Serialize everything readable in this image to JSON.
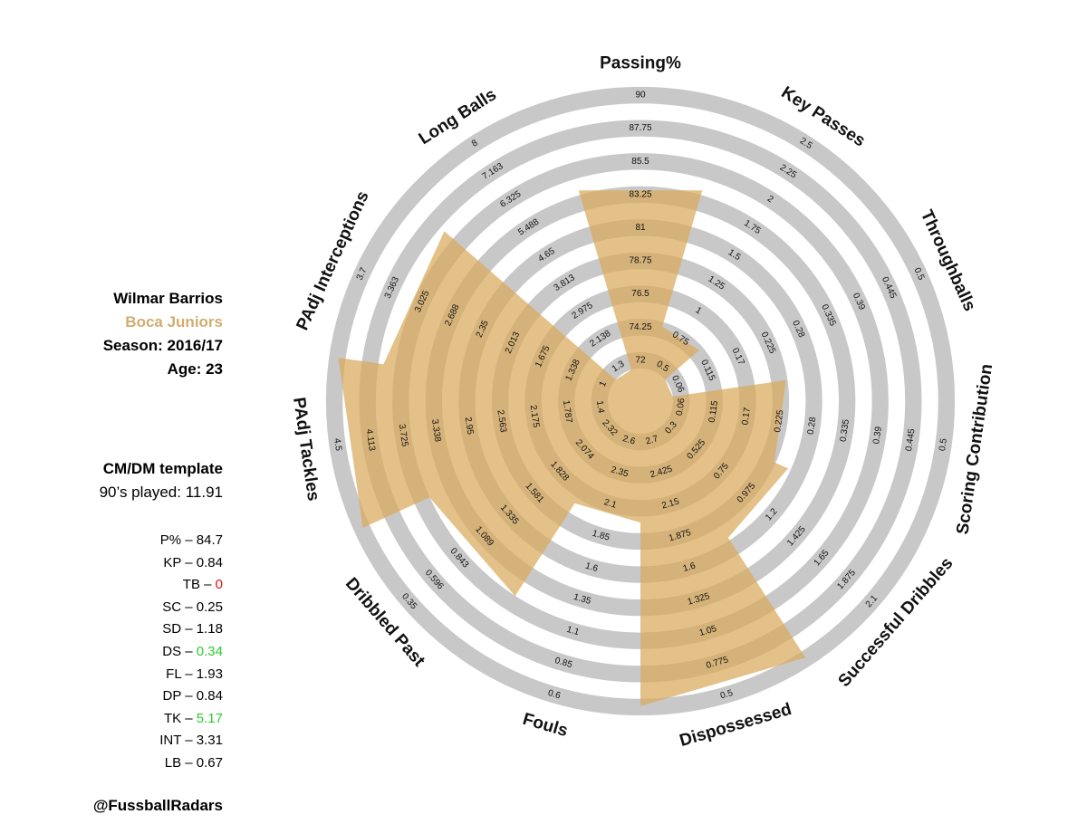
{
  "player": {
    "name": "Wilmar Barrios",
    "club": "Boca Juniors",
    "season": "Season: 2016/17",
    "age": "Age: 23",
    "template": "CM/DM template",
    "played": "90’s played: 11.91",
    "handle": "@FussballRadars"
  },
  "colors": {
    "club": "#d1ad6e",
    "ring": "#c8c8c8",
    "fill": "#d9a95a",
    "stat_red": "#e81010",
    "stat_green": "#2ecc2e"
  },
  "stats": [
    {
      "abbr": "P% – ",
      "value": "84.7",
      "color": "default"
    },
    {
      "abbr": "KP – ",
      "value": "0.84",
      "color": "default"
    },
    {
      "abbr": "TB – ",
      "value": "0",
      "color": "red"
    },
    {
      "abbr": "SC – ",
      "value": "0.25",
      "color": "default"
    },
    {
      "abbr": "SD – ",
      "value": "1.18",
      "color": "default"
    },
    {
      "abbr": "DS – ",
      "value": "0.34",
      "color": "green"
    },
    {
      "abbr": "FL – ",
      "value": "1.93",
      "color": "default"
    },
    {
      "abbr": "DP – ",
      "value": "0.84",
      "color": "default"
    },
    {
      "abbr": "TK – ",
      "value": "5.17",
      "color": "green"
    },
    {
      "abbr": "INT – ",
      "value": "3.31",
      "color": "default"
    },
    {
      "abbr": "LB – ",
      "value": "0.67",
      "color": "default"
    }
  ],
  "chart_data": {
    "type": "radar",
    "axes": [
      {
        "label": "Passing%",
        "ticks": [
          "72",
          "74.25",
          "76.5",
          "78.75",
          "81",
          "83.25",
          "85.5",
          "87.75",
          "90"
        ],
        "value": 84.7,
        "min": 72,
        "max": 90
      },
      {
        "label": "Key Passes",
        "ticks": [
          "0.5",
          "0.75",
          "1",
          "1.25",
          "1.5",
          "1.75",
          "2",
          "2.25",
          "2.5"
        ],
        "value": 0.84,
        "min": 0.5,
        "max": 2.5
      },
      {
        "label": "Throughballs",
        "ticks": [
          "0.06",
          "0.115",
          "0.17",
          "0.225",
          "0.28",
          "0.335",
          "0.39",
          "0.445",
          "0.5"
        ],
        "value": 0,
        "min": 0.06,
        "max": 0.5
      },
      {
        "label": "Scoring Contribution",
        "ticks": [
          "0.06",
          "0.115",
          "0.17",
          "0.225",
          "0.28",
          "0.335",
          "0.39",
          "0.445",
          "0.5"
        ],
        "value": 0.25,
        "min": 0.06,
        "max": 0.5
      },
      {
        "label": "Successful Dribbles",
        "ticks": [
          "0.3",
          "0.525",
          "0.75",
          "0.975",
          "1.2",
          "1.425",
          "1.65",
          "1.875",
          "2.1"
        ],
        "value": 1.18,
        "min": 0.3,
        "max": 2.1
      },
      {
        "label": "Dispossessed",
        "ticks": [
          "2.7",
          "2.425",
          "2.15",
          "1.875",
          "1.6",
          "1.325",
          "1.05",
          "0.775",
          "0.5"
        ],
        "value": 0.34,
        "min": 2.7,
        "max": 0.5
      },
      {
        "label": "Fouls",
        "ticks": [
          "2.6",
          "2.35",
          "2.1",
          "1.85",
          "1.6",
          "1.35",
          "1.1",
          "0.85",
          "0.6"
        ],
        "value": 1.93,
        "min": 2.6,
        "max": 0.6
      },
      {
        "label": "Dribbled Past",
        "ticks": [
          "2.32",
          "2.074",
          "1.828",
          "1.581",
          "1.335",
          "1.089",
          "0.843",
          "0.596",
          "0.35"
        ],
        "value": 0.84,
        "min": 2.32,
        "max": 0.35
      },
      {
        "label": "PAdj Tackles",
        "ticks": [
          "1.4",
          "1.787",
          "2.175",
          "2.563",
          "2.95",
          "3.338",
          "3.725",
          "4.113",
          "4.5"
        ],
        "value": 5.17,
        "min": 1.4,
        "max": 4.5
      },
      {
        "label": "PAdj Interceptions",
        "ticks": [
          "1",
          "1.338",
          "1.675",
          "2.013",
          "2.35",
          "2.688",
          "3.025",
          "3.363",
          "3.7"
        ],
        "value": 3.31,
        "min": 1,
        "max": 3.7
      },
      {
        "label": "Long Balls",
        "ticks": [
          "1.3",
          "2.138",
          "2.975",
          "3.813",
          "4.65",
          "5.488",
          "6.325",
          "7.163",
          "8"
        ],
        "value": 0.67,
        "min": 1.3,
        "max": 8
      }
    ]
  }
}
